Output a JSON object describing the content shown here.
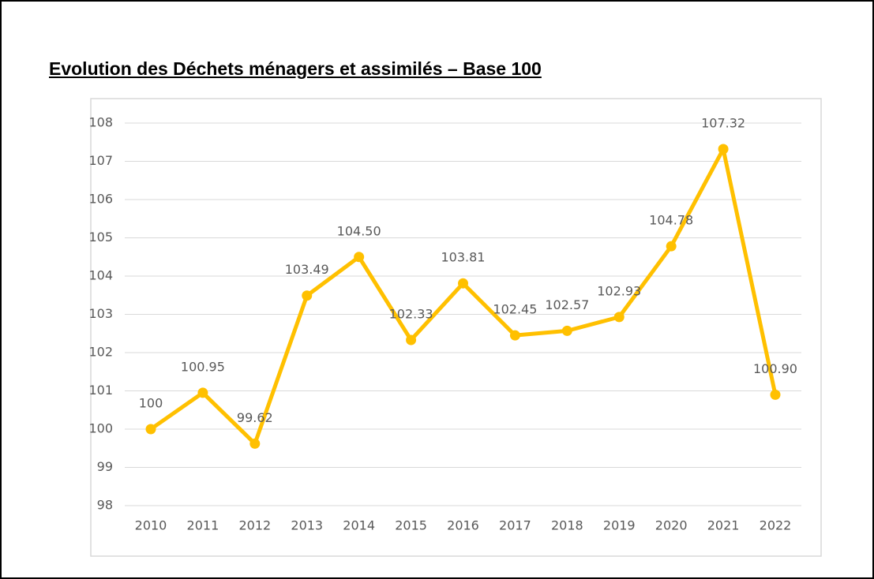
{
  "chart_data": {
    "type": "line",
    "title": "Evolution des Déchets ménagers et assimilés – Base 100",
    "categories": [
      "2010",
      "2011",
      "2012",
      "2013",
      "2014",
      "2015",
      "2016",
      "2017",
      "2018",
      "2019",
      "2020",
      "2021",
      "2022"
    ],
    "series": [
      {
        "color": "#FFC000",
        "values": [
          100,
          100.95,
          99.62,
          103.49,
          104.5,
          102.33,
          103.81,
          102.45,
          102.57,
          102.93,
          104.78,
          107.32,
          100.9
        ],
        "value_labels": [
          "100",
          "100.95",
          "99.62",
          "103.49",
          "104.50",
          "102.33",
          "103.81",
          "102.45",
          "102.57",
          "102.93",
          "104.78",
          "107.32",
          "100.90"
        ]
      }
    ],
    "ylim": [
      98,
      108
    ],
    "yticks": [
      98,
      99,
      100,
      101,
      102,
      103,
      104,
      105,
      106,
      107,
      108
    ],
    "grid": true
  }
}
